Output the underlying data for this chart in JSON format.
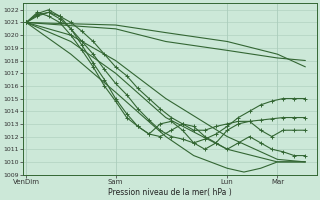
{
  "xlabel": "Pression niveau de la mer( hPa )",
  "bg_color": "#cce8d8",
  "grid_color": "#aaccbb",
  "line_color": "#336633",
  "ylim": [
    1009,
    1022.5
  ],
  "yticks": [
    1009,
    1010,
    1011,
    1012,
    1013,
    1014,
    1015,
    1016,
    1017,
    1018,
    1019,
    1020,
    1021,
    1022
  ],
  "xtick_labels": [
    "VenDim",
    "Sam",
    "Lun",
    "Mar"
  ],
  "xtick_positions": [
    0.0,
    0.32,
    0.72,
    0.9
  ],
  "figsize": [
    3.2,
    2.0
  ],
  "dpi": 100,
  "lines": [
    {
      "x": [
        0.0,
        0.32,
        0.5,
        0.72,
        0.9,
        1.0
      ],
      "y": [
        1021.0,
        1020.8,
        1020.2,
        1019.5,
        1018.5,
        1017.5
      ],
      "dots": false,
      "lw": 0.8
    },
    {
      "x": [
        0.0,
        0.32,
        0.5,
        0.72,
        0.9,
        1.0
      ],
      "y": [
        1021.0,
        1020.5,
        1019.5,
        1018.8,
        1018.2,
        1018.0
      ],
      "dots": false,
      "lw": 0.8
    },
    {
      "x": [
        0.0,
        0.04,
        0.08,
        0.12,
        0.16,
        0.2,
        0.24,
        0.28,
        0.32,
        0.36,
        0.4,
        0.44,
        0.48,
        0.52,
        0.56,
        0.6,
        0.64,
        0.68,
        0.72,
        0.76,
        0.8,
        0.84,
        0.88,
        0.92,
        0.96,
        1.0
      ],
      "y": [
        1021.0,
        1021.5,
        1021.8,
        1021.5,
        1021.0,
        1020.3,
        1019.5,
        1018.5,
        1017.5,
        1016.8,
        1015.8,
        1015.0,
        1014.2,
        1013.5,
        1013.0,
        1012.5,
        1012.5,
        1012.8,
        1013.0,
        1013.2,
        1013.2,
        1013.3,
        1013.4,
        1013.5,
        1013.5,
        1013.5
      ],
      "dots": true,
      "lw": 0.8
    },
    {
      "x": [
        0.0,
        0.04,
        0.08,
        0.12,
        0.16,
        0.2,
        0.24,
        0.28,
        0.32,
        0.36,
        0.4,
        0.44,
        0.48,
        0.52,
        0.56,
        0.6,
        0.64,
        0.68,
        0.72,
        0.76,
        0.8,
        0.84,
        0.88,
        0.92,
        0.96,
        1.0
      ],
      "y": [
        1021.0,
        1021.6,
        1021.8,
        1021.3,
        1020.5,
        1019.5,
        1018.5,
        1017.3,
        1016.2,
        1015.3,
        1014.2,
        1013.3,
        1012.5,
        1012.0,
        1011.8,
        1011.5,
        1011.8,
        1012.2,
        1012.8,
        1013.5,
        1014.0,
        1014.5,
        1014.8,
        1015.0,
        1015.0,
        1015.0
      ],
      "dots": true,
      "lw": 0.8
    },
    {
      "x": [
        0.0,
        0.04,
        0.08,
        0.12,
        0.16,
        0.2,
        0.24,
        0.28,
        0.32,
        0.36,
        0.4,
        0.44,
        0.48,
        0.52,
        0.56,
        0.6,
        0.64,
        0.68,
        0.72,
        0.76,
        0.8,
        0.84,
        0.88,
        0.92,
        0.96,
        1.0
      ],
      "y": [
        1021.0,
        1021.7,
        1022.0,
        1021.5,
        1020.5,
        1019.2,
        1017.8,
        1016.5,
        1015.0,
        1013.8,
        1012.8,
        1012.2,
        1012.0,
        1012.5,
        1013.0,
        1012.8,
        1012.0,
        1011.5,
        1011.0,
        1011.5,
        1012.0,
        1011.5,
        1011.0,
        1010.8,
        1010.5,
        1010.5
      ],
      "dots": true,
      "lw": 0.8
    },
    {
      "x": [
        0.0,
        0.04,
        0.08,
        0.12,
        0.16,
        0.2,
        0.24,
        0.28,
        0.32,
        0.36,
        0.4,
        0.44,
        0.48,
        0.52,
        0.56,
        0.6,
        0.64,
        0.68,
        0.72,
        0.76,
        0.8,
        0.84,
        0.88,
        0.92,
        0.96,
        1.0
      ],
      "y": [
        1021.0,
        1021.8,
        1021.5,
        1021.0,
        1020.0,
        1018.8,
        1017.5,
        1016.0,
        1014.8,
        1013.5,
        1012.8,
        1012.2,
        1013.0,
        1013.2,
        1012.5,
        1011.5,
        1011.0,
        1011.5,
        1012.5,
        1013.0,
        1013.2,
        1012.5,
        1012.0,
        1012.5,
        1012.5,
        1012.5
      ],
      "dots": true,
      "lw": 0.8
    },
    {
      "x": [
        0.0,
        0.16,
        0.32,
        0.5,
        0.72,
        0.9,
        1.0
      ],
      "y": [
        1021.0,
        1020.0,
        1018.0,
        1015.0,
        1012.0,
        1010.2,
        1010.0
      ],
      "dots": false,
      "lw": 0.8
    },
    {
      "x": [
        0.0,
        0.16,
        0.32,
        0.5,
        0.72,
        0.9,
        1.0
      ],
      "y": [
        1021.0,
        1019.5,
        1017.0,
        1013.5,
        1011.0,
        1010.0,
        1010.0
      ],
      "dots": false,
      "lw": 0.8
    },
    {
      "x": [
        0.0,
        0.16,
        0.32,
        0.5,
        0.6,
        0.66,
        0.72,
        0.78,
        0.84,
        0.9,
        1.0
      ],
      "y": [
        1021.0,
        1018.5,
        1015.5,
        1012.0,
        1010.5,
        1010.0,
        1009.5,
        1009.2,
        1009.5,
        1010.0,
        1010.0
      ],
      "dots": false,
      "lw": 0.8
    }
  ]
}
